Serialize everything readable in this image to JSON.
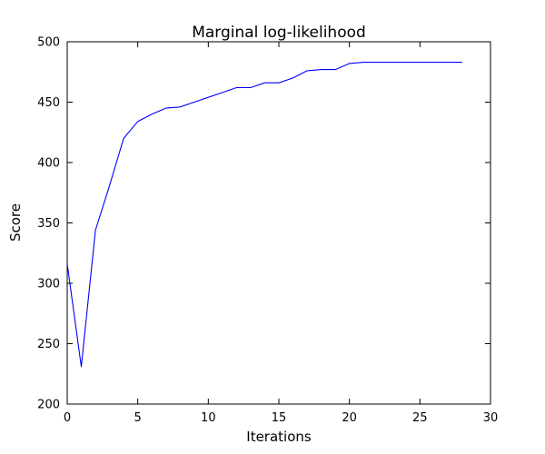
{
  "chart_data": {
    "type": "line",
    "title": "Marginal log-likelihood",
    "xlabel": "Iterations",
    "ylabel": "Score",
    "xlim": [
      0,
      30
    ],
    "ylim": [
      200,
      500
    ],
    "xticks": [
      0,
      5,
      10,
      15,
      20,
      25,
      30
    ],
    "yticks": [
      200,
      250,
      300,
      350,
      400,
      450,
      500
    ],
    "grid": false,
    "legend": "none",
    "line_color": "#0000ff",
    "x": [
      0,
      1,
      2,
      3,
      4,
      5,
      6,
      7,
      8,
      9,
      10,
      11,
      12,
      13,
      14,
      15,
      16,
      17,
      18,
      19,
      20,
      21,
      22,
      23,
      24,
      25,
      26,
      27,
      28
    ],
    "values": [
      316,
      231,
      344,
      381,
      420,
      434,
      440,
      445,
      446,
      450,
      454,
      458,
      462,
      462,
      466,
      466,
      470,
      476,
      477,
      477,
      482,
      483,
      483,
      483,
      483,
      483,
      483,
      483,
      483
    ]
  }
}
